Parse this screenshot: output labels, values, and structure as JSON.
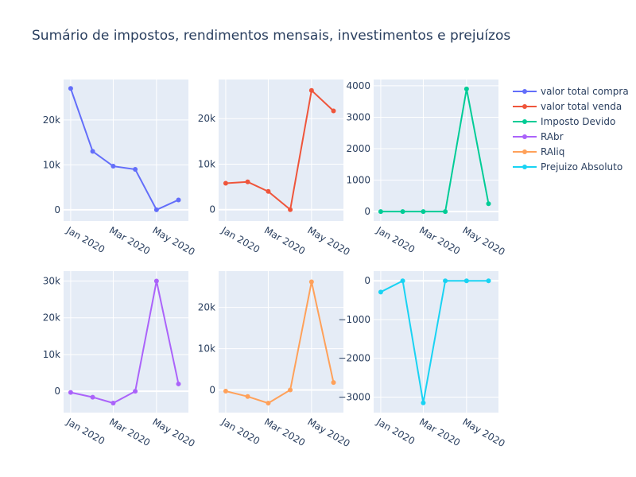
{
  "title": "Sumário de impostos, rendimentos mensais, investimentos e prejuízos",
  "chart_data": {
    "type": "line",
    "layout": "2x3 subplots",
    "x": [
      "2020-01-01",
      "2020-02-01",
      "2020-03-01",
      "2020-04-01",
      "2020-05-01",
      "2020-06-01"
    ],
    "x_tick_labels": [
      "Jan 2020",
      "Mar 2020",
      "May 2020"
    ],
    "legend_placement": "right",
    "grid": true,
    "series": [
      {
        "name": "valor total compra",
        "color": "#636efa",
        "values": [
          27000,
          13000,
          9700,
          9000,
          0,
          2200
        ],
        "ylim": [
          -2500,
          29000
        ],
        "yticks": [
          0,
          10000,
          20000
        ],
        "ytick_labels": [
          "0",
          "10k",
          "20k"
        ]
      },
      {
        "name": "valor total venda",
        "color": "#ef553b",
        "values": [
          5800,
          6100,
          4000,
          0,
          26200,
          21700
        ],
        "ylim": [
          -2500,
          28600
        ],
        "yticks": [
          0,
          10000,
          20000
        ],
        "ytick_labels": [
          "0",
          "10k",
          "20k"
        ]
      },
      {
        "name": "Imposto Devido",
        "color": "#00cc96",
        "values": [
          0,
          0,
          0,
          0,
          3900,
          250
        ],
        "ylim": [
          -300,
          4200
        ],
        "yticks": [
          0,
          1000,
          2000,
          3000,
          4000
        ],
        "ytick_labels": [
          "0",
          "1000",
          "2000",
          "3000",
          "4000"
        ]
      },
      {
        "name": "RAbr",
        "color": "#ab63fa",
        "values": [
          -300,
          -1600,
          -3200,
          0,
          30000,
          2000
        ],
        "ylim": [
          -5800,
          32700
        ],
        "yticks": [
          0,
          10000,
          20000,
          30000
        ],
        "ytick_labels": [
          "0",
          "10k",
          "20k",
          "30k"
        ]
      },
      {
        "name": "RAliq",
        "color": "#ffa15a",
        "values": [
          -300,
          -1600,
          -3200,
          0,
          26200,
          1800
        ],
        "ylim": [
          -5500,
          28800
        ],
        "yticks": [
          0,
          10000,
          20000
        ],
        "ytick_labels": [
          "0",
          "10k",
          "20k"
        ]
      },
      {
        "name": "Prejuizo Absoluto",
        "color": "#19d3f3",
        "values": [
          -290,
          0,
          -3150,
          0,
          0,
          0
        ],
        "ylim": [
          -3400,
          250
        ],
        "yticks": [
          0,
          -1000,
          -2000,
          -3000
        ],
        "ytick_labels": [
          "0",
          "−1000",
          "−2000",
          "−3000"
        ]
      }
    ]
  }
}
